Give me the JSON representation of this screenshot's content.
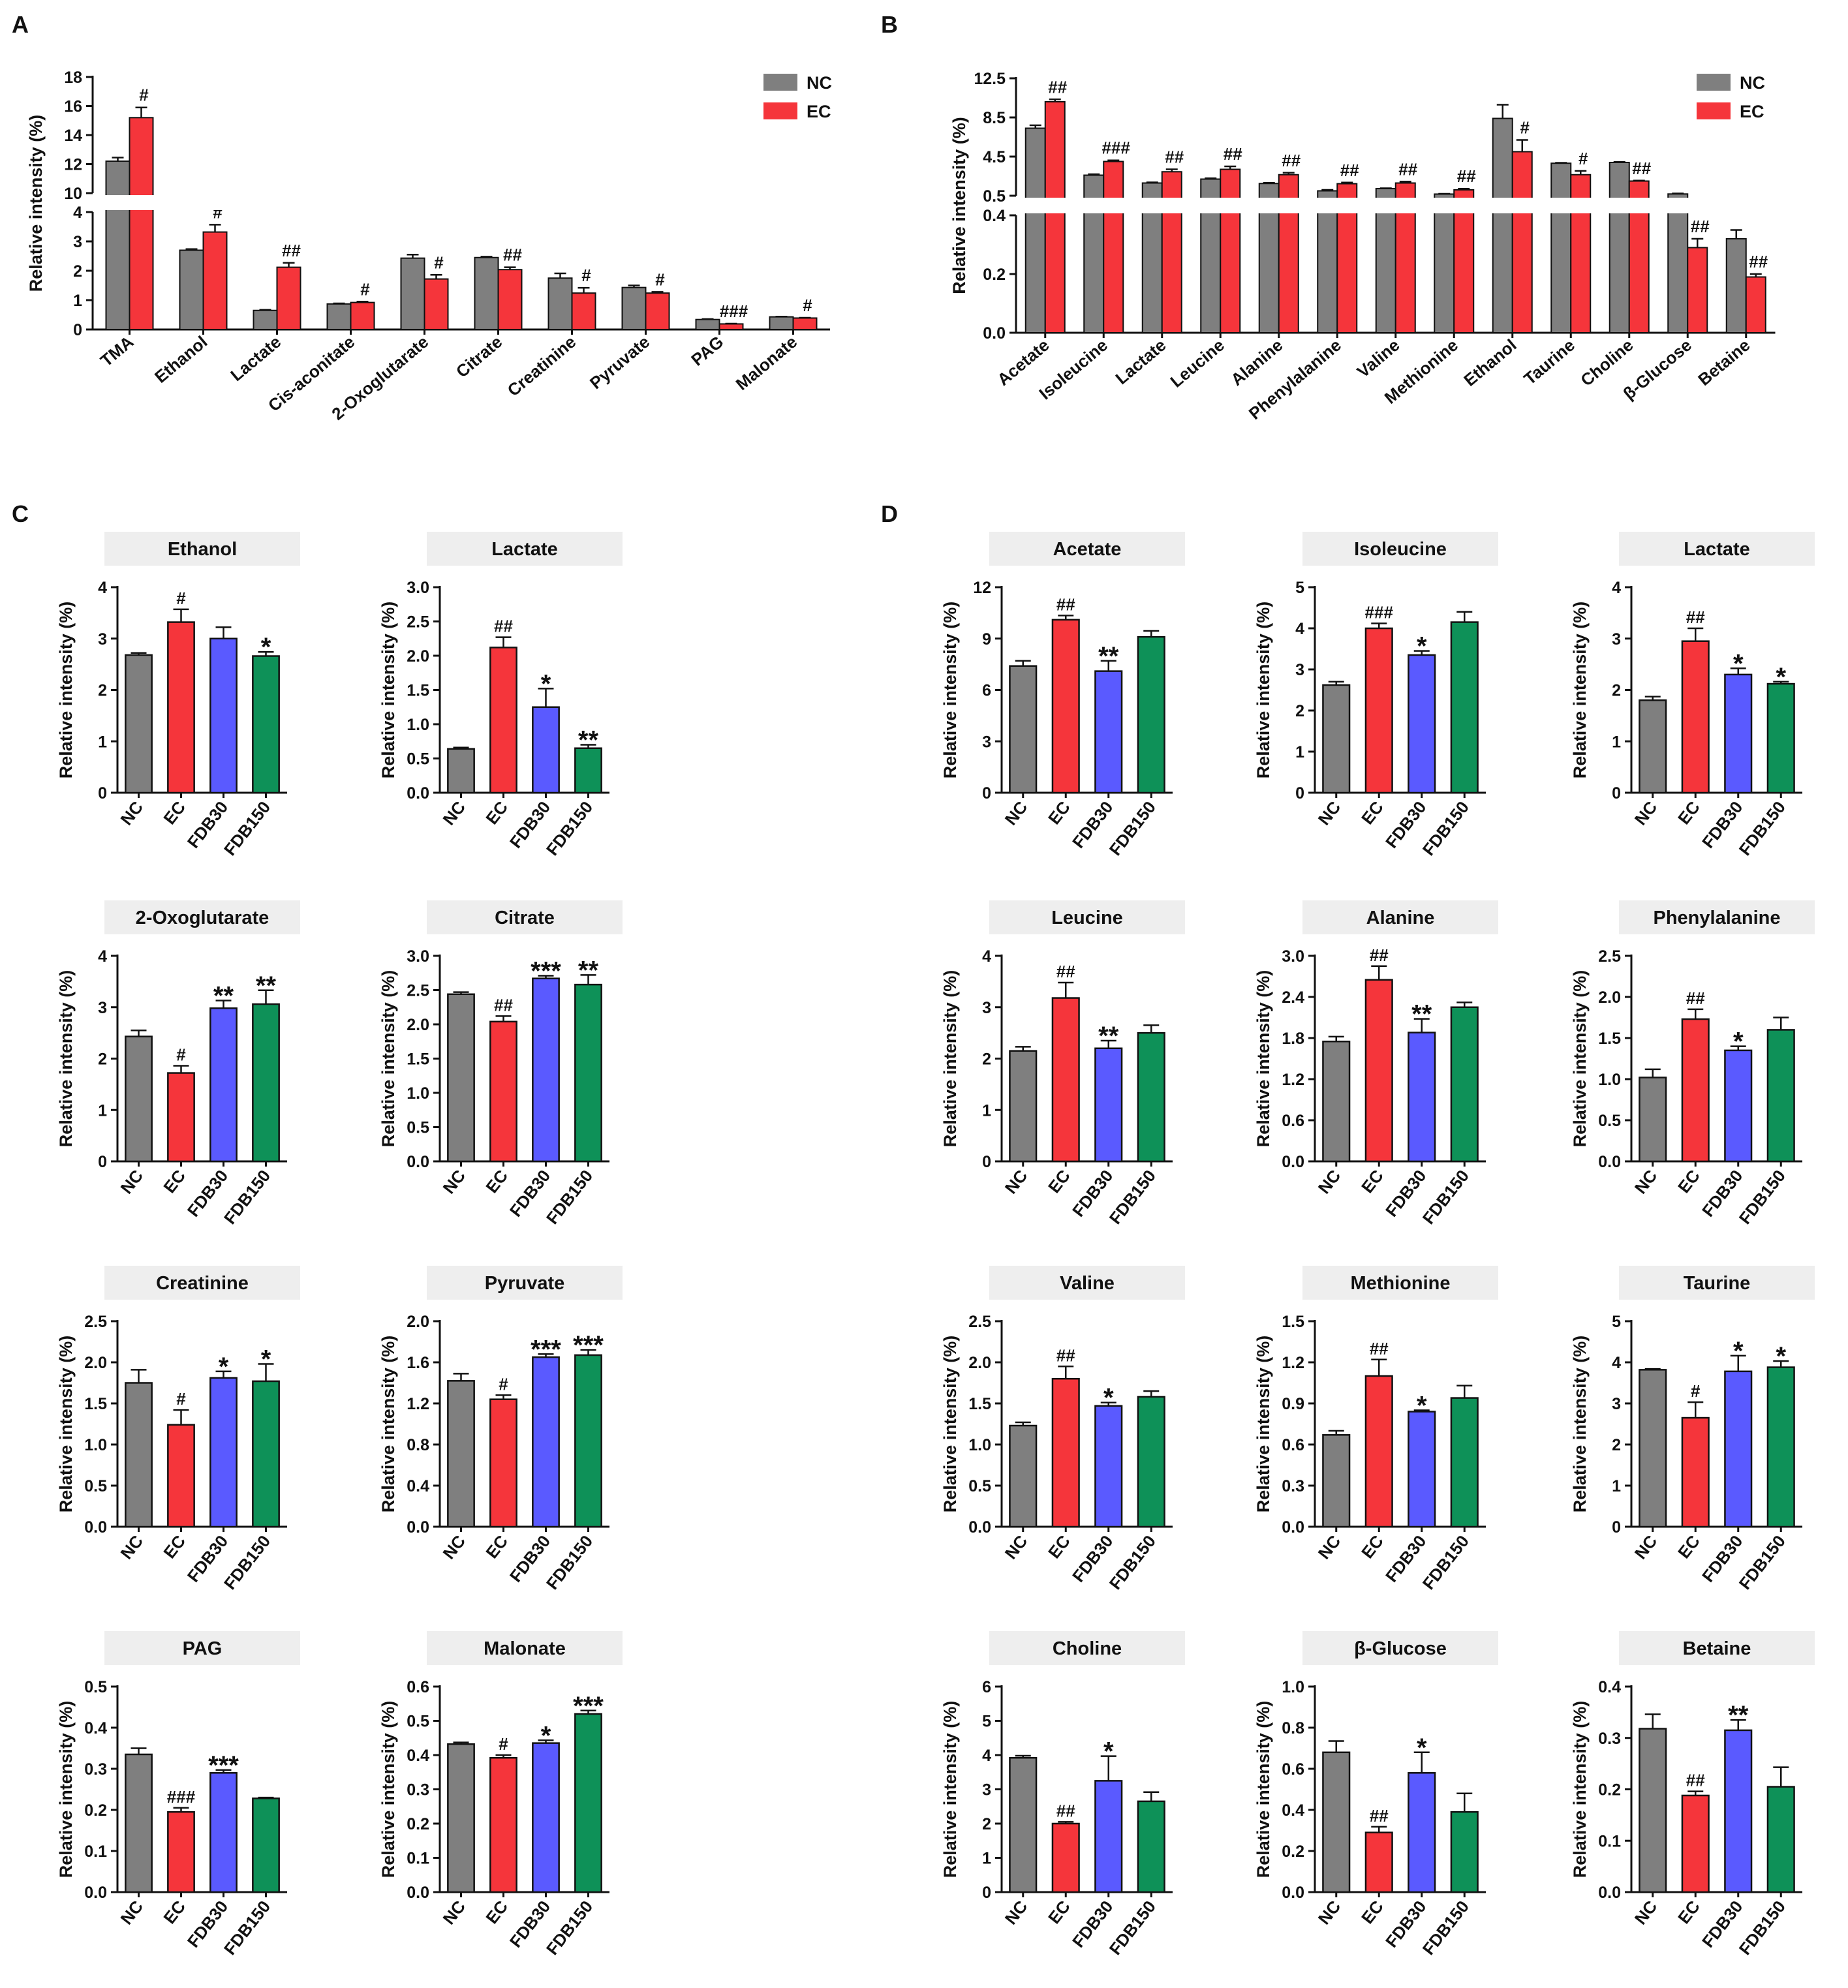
{
  "figure": {
    "group_labels": [
      "NC",
      "EC",
      "FDB30",
      "FDB150"
    ],
    "colors": {
      "NC": "#7f7f7f",
      "EC": "#f5353b",
      "FDB30": "#5a5aff",
      "FDB150": "#0e9158",
      "axis": "#111111",
      "panel_title_bg": "#eeeeee"
    }
  },
  "chart_data": [
    {
      "panel": "A",
      "type": "bar",
      "ylabel": "Relative intensity (%)",
      "legend": [
        "NC",
        "EC"
      ],
      "categories": [
        "TMA",
        "Ethanol",
        "Lactate",
        "Cis-aconitate",
        "2-Oxoglutarate",
        "Citrate",
        "Creatinine",
        "Pyruvate",
        "PAG",
        "Malonate"
      ],
      "series": [
        {
          "name": "NC",
          "values": [
            12.2,
            2.7,
            0.65,
            0.87,
            2.43,
            2.45,
            1.75,
            1.43,
            0.34,
            0.43
          ],
          "errors": [
            0.25,
            0.04,
            0.02,
            0.02,
            0.12,
            0.03,
            0.16,
            0.07,
            0.015,
            0.01
          ]
        },
        {
          "name": "EC",
          "values": [
            15.2,
            3.32,
            2.12,
            0.92,
            1.72,
            2.04,
            1.24,
            1.24,
            0.19,
            0.39
          ],
          "errors": [
            0.7,
            0.25,
            0.15,
            0.03,
            0.14,
            0.08,
            0.18,
            0.04,
            0.01,
            0.01
          ]
        }
      ],
      "marks": [
        "#",
        "#",
        "##",
        "#",
        "#",
        "##",
        "#",
        "#",
        "###",
        "#"
      ],
      "axis_break": {
        "lower": [
          0,
          4
        ],
        "upper": [
          10,
          18
        ]
      },
      "lower_ticks": [
        "0",
        "1",
        "2",
        "3",
        "4"
      ],
      "upper_ticks": [
        "10",
        "12",
        "14",
        "16",
        "18"
      ]
    },
    {
      "panel": "B",
      "type": "bar",
      "ylabel": "Relative intensity (%)",
      "legend": [
        "NC",
        "EC"
      ],
      "categories": [
        "Acetate",
        "Isoleucine",
        "Lactate",
        "Leucine",
        "Alanine",
        "Phenylalanine",
        "Valine",
        "Methionine",
        "Ethanol",
        "Taurine",
        "Choline",
        "β-Glucose",
        "Betaine"
      ],
      "series": [
        {
          "name": "NC",
          "values": [
            7.4,
            2.6,
            1.8,
            2.2,
            1.75,
            1.0,
            1.23,
            0.67,
            8.4,
            3.82,
            3.9,
            0.68,
            0.32
          ],
          "errors": [
            0.3,
            0.1,
            0.07,
            0.08,
            0.07,
            0.1,
            0.04,
            0.03,
            1.4,
            0.05,
            0.05,
            0.05,
            0.03
          ]
        },
        {
          "name": "EC",
          "values": [
            10.1,
            4.0,
            2.95,
            3.2,
            2.65,
            1.73,
            1.8,
            1.1,
            5.0,
            2.65,
            2.0,
            0.29,
            0.19
          ],
          "errors": [
            0.25,
            0.12,
            0.25,
            0.3,
            0.2,
            0.12,
            0.15,
            0.12,
            1.2,
            0.38,
            0.05,
            0.03,
            0.01
          ]
        }
      ],
      "marks": [
        "##",
        "###",
        "##",
        "##",
        "##",
        "##",
        "##",
        "##",
        "#",
        "#",
        "##",
        "##",
        "##"
      ],
      "axis_break": {
        "lower": [
          0,
          0.4
        ],
        "upper": [
          0.5,
          12.5
        ]
      },
      "lower_ticks": [
        "0.0",
        "0.2",
        "0.4"
      ],
      "upper_ticks": [
        "0.5",
        "4.5",
        "8.5",
        "12.5"
      ]
    },
    {
      "panel": "C",
      "type": "bar",
      "title": "Ethanol",
      "ylabel": "Relative intensity (%)",
      "categories": [
        "NC",
        "EC",
        "FDB30",
        "FDB150"
      ],
      "values": [
        2.68,
        3.32,
        3.0,
        2.66
      ],
      "errors": [
        0.04,
        0.25,
        0.22,
        0.08
      ],
      "annotations": [
        "",
        "#",
        "",
        "*"
      ],
      "ylim": [
        0,
        4
      ],
      "ticks": [
        "0",
        "1",
        "2",
        "3",
        "4"
      ]
    },
    {
      "panel": "C",
      "type": "bar",
      "title": "Lactate",
      "ylabel": "Relative intensity (%)",
      "categories": [
        "NC",
        "EC",
        "FDB30",
        "FDB150"
      ],
      "values": [
        0.64,
        2.12,
        1.25,
        0.65
      ],
      "errors": [
        0.02,
        0.15,
        0.27,
        0.05
      ],
      "annotations": [
        "",
        "##",
        "*",
        "**"
      ],
      "ylim": [
        0,
        3.0
      ],
      "ticks": [
        "0.0",
        "0.5",
        "1.0",
        "1.5",
        "2.0",
        "2.5",
        "3.0"
      ]
    },
    {
      "panel": "C",
      "type": "bar",
      "title": "2-Oxoglutarate",
      "ylabel": "Relative intensity (%)",
      "categories": [
        "NC",
        "EC",
        "FDB30",
        "FDB150"
      ],
      "values": [
        2.43,
        1.72,
        2.98,
        3.06
      ],
      "errors": [
        0.12,
        0.14,
        0.15,
        0.27
      ],
      "annotations": [
        "",
        "#",
        "**",
        "**"
      ],
      "ylim": [
        0,
        4
      ],
      "ticks": [
        "0",
        "1",
        "2",
        "3",
        "4"
      ]
    },
    {
      "panel": "C",
      "type": "bar",
      "title": "Citrate",
      "ylabel": "Relative intensity (%)",
      "categories": [
        "NC",
        "EC",
        "FDB30",
        "FDB150"
      ],
      "values": [
        2.44,
        2.04,
        2.67,
        2.58
      ],
      "errors": [
        0.03,
        0.08,
        0.04,
        0.14
      ],
      "annotations": [
        "",
        "##",
        "***",
        "**"
      ],
      "ylim": [
        0,
        3.0
      ],
      "ticks": [
        "0.0",
        "0.5",
        "1.0",
        "1.5",
        "2.0",
        "2.5",
        "3.0"
      ]
    },
    {
      "panel": "C",
      "type": "bar",
      "title": "Creatinine",
      "ylabel": "Relative intensity (%)",
      "categories": [
        "NC",
        "EC",
        "FDB30",
        "FDB150"
      ],
      "values": [
        1.75,
        1.24,
        1.81,
        1.77
      ],
      "errors": [
        0.16,
        0.18,
        0.08,
        0.21
      ],
      "annotations": [
        "",
        "#",
        "*",
        "*"
      ],
      "ylim": [
        0,
        2.5
      ],
      "ticks": [
        "0.0",
        "0.5",
        "1.0",
        "1.5",
        "2.0",
        "2.5"
      ]
    },
    {
      "panel": "C",
      "type": "bar",
      "title": "Pyruvate",
      "ylabel": "Relative intensity (%)",
      "categories": [
        "NC",
        "EC",
        "FDB30",
        "FDB150"
      ],
      "values": [
        1.42,
        1.24,
        1.65,
        1.67
      ],
      "errors": [
        0.07,
        0.04,
        0.03,
        0.05
      ],
      "annotations": [
        "",
        "#",
        "***",
        "***"
      ],
      "ylim": [
        0,
        2.0
      ],
      "ticks": [
        "0.0",
        "0.4",
        "0.8",
        "1.2",
        "1.6",
        "2.0"
      ]
    },
    {
      "panel": "C",
      "type": "bar",
      "title": "PAG",
      "ylabel": "Relative intensity (%)",
      "categories": [
        "NC",
        "EC",
        "FDB30",
        "FDB150"
      ],
      "values": [
        0.335,
        0.195,
        0.29,
        0.228
      ],
      "errors": [
        0.015,
        0.01,
        0.007,
        0.002
      ],
      "annotations": [
        "",
        "###",
        "***",
        ""
      ],
      "ylim": [
        0,
        0.5
      ],
      "ticks": [
        "0.0",
        "0.1",
        "0.2",
        "0.3",
        "0.4",
        "0.5"
      ]
    },
    {
      "panel": "C",
      "type": "bar",
      "title": "Malonate",
      "ylabel": "Relative intensity (%)",
      "categories": [
        "NC",
        "EC",
        "FDB30",
        "FDB150"
      ],
      "values": [
        0.432,
        0.392,
        0.435,
        0.52
      ],
      "errors": [
        0.005,
        0.008,
        0.008,
        0.01
      ],
      "annotations": [
        "",
        "#",
        "*",
        "***"
      ],
      "ylim": [
        0,
        0.6
      ],
      "ticks": [
        "0.0",
        "0.1",
        "0.2",
        "0.3",
        "0.4",
        "0.5",
        "0.6"
      ]
    },
    {
      "panel": "D",
      "type": "bar",
      "title": "Acetate",
      "ylabel": "Relative intensity (%)",
      "categories": [
        "NC",
        "EC",
        "FDB30",
        "FDB150"
      ],
      "values": [
        7.4,
        10.1,
        7.1,
        9.1
      ],
      "errors": [
        0.3,
        0.25,
        0.6,
        0.35
      ],
      "annotations": [
        "",
        "##",
        "**",
        ""
      ],
      "ylim": [
        0,
        12
      ],
      "ticks": [
        "0",
        "3",
        "6",
        "9",
        "12"
      ]
    },
    {
      "panel": "D",
      "type": "bar",
      "title": "Isoleucine",
      "ylabel": "Relative intensity (%)",
      "categories": [
        "NC",
        "EC",
        "FDB30",
        "FDB150"
      ],
      "values": [
        2.62,
        4.0,
        3.35,
        4.15
      ],
      "errors": [
        0.08,
        0.12,
        0.1,
        0.25
      ],
      "annotations": [
        "",
        "###",
        "*",
        ""
      ],
      "ylim": [
        0,
        5
      ],
      "ticks": [
        "0",
        "1",
        "2",
        "3",
        "4",
        "5"
      ]
    },
    {
      "panel": "D",
      "type": "bar",
      "title": "Lactate",
      "ylabel": "Relative intensity (%)",
      "categories": [
        "NC",
        "EC",
        "FDB30",
        "FDB150"
      ],
      "values": [
        1.8,
        2.95,
        2.3,
        2.12
      ],
      "errors": [
        0.07,
        0.25,
        0.12,
        0.04
      ],
      "annotations": [
        "",
        "##",
        "*",
        "*"
      ],
      "ylim": [
        0,
        4
      ],
      "ticks": [
        "0",
        "1",
        "2",
        "3",
        "4"
      ]
    },
    {
      "panel": "D",
      "type": "bar",
      "title": "Leucine",
      "ylabel": "Relative intensity (%)",
      "categories": [
        "NC",
        "EC",
        "FDB30",
        "FDB150"
      ],
      "values": [
        2.15,
        3.18,
        2.2,
        2.5
      ],
      "errors": [
        0.08,
        0.3,
        0.15,
        0.15
      ],
      "annotations": [
        "",
        "##",
        "**",
        ""
      ],
      "ylim": [
        0,
        4
      ],
      "ticks": [
        "0",
        "1",
        "2",
        "3",
        "4"
      ]
    },
    {
      "panel": "D",
      "type": "bar",
      "title": "Alanine",
      "ylabel": "Relative intensity (%)",
      "categories": [
        "NC",
        "EC",
        "FDB30",
        "FDB150"
      ],
      "values": [
        1.75,
        2.65,
        1.88,
        2.25
      ],
      "errors": [
        0.07,
        0.2,
        0.2,
        0.07
      ],
      "annotations": [
        "",
        "##",
        "**",
        ""
      ],
      "ylim": [
        0,
        3.0
      ],
      "ticks": [
        "0.0",
        "0.6",
        "1.2",
        "1.8",
        "2.4",
        "3.0"
      ]
    },
    {
      "panel": "D",
      "type": "bar",
      "title": "Phenylalanine",
      "ylabel": "Relative intensity (%)",
      "categories": [
        "NC",
        "EC",
        "FDB30",
        "FDB150"
      ],
      "values": [
        1.02,
        1.73,
        1.35,
        1.6
      ],
      "errors": [
        0.1,
        0.12,
        0.05,
        0.15
      ],
      "annotations": [
        "",
        "##",
        "*",
        ""
      ],
      "ylim": [
        0,
        2.5
      ],
      "ticks": [
        "0.0",
        "0.5",
        "1.0",
        "1.5",
        "2.0",
        "2.5"
      ]
    },
    {
      "panel": "D",
      "type": "bar",
      "title": "Valine",
      "ylabel": "Relative intensity (%)",
      "categories": [
        "NC",
        "EC",
        "FDB30",
        "FDB150"
      ],
      "values": [
        1.23,
        1.8,
        1.47,
        1.58
      ],
      "errors": [
        0.04,
        0.15,
        0.04,
        0.07
      ],
      "annotations": [
        "",
        "##",
        "*",
        ""
      ],
      "ylim": [
        0,
        2.5
      ],
      "ticks": [
        "0.0",
        "0.5",
        "1.0",
        "1.5",
        "2.0",
        "2.5"
      ]
    },
    {
      "panel": "D",
      "type": "bar",
      "title": "Methionine",
      "ylabel": "Relative intensity (%)",
      "categories": [
        "NC",
        "EC",
        "FDB30",
        "FDB150"
      ],
      "values": [
        0.67,
        1.1,
        0.84,
        0.94
      ],
      "errors": [
        0.03,
        0.12,
        0.01,
        0.09
      ],
      "annotations": [
        "",
        "##",
        "*",
        ""
      ],
      "ylim": [
        0,
        1.5
      ],
      "ticks": [
        "0.0",
        "0.3",
        "0.6",
        "0.9",
        "1.2",
        "1.5"
      ]
    },
    {
      "panel": "D",
      "type": "bar",
      "title": "Taurine",
      "ylabel": "Relative intensity (%)",
      "categories": [
        "NC",
        "EC",
        "FDB30",
        "FDB150"
      ],
      "values": [
        3.82,
        2.65,
        3.78,
        3.88
      ],
      "errors": [
        0.02,
        0.38,
        0.38,
        0.15
      ],
      "annotations": [
        "",
        "#",
        "*",
        "*"
      ],
      "ylim": [
        0,
        5
      ],
      "ticks": [
        "0",
        "1",
        "2",
        "3",
        "4",
        "5"
      ]
    },
    {
      "panel": "D",
      "type": "bar",
      "title": "Choline",
      "ylabel": "Relative intensity (%)",
      "categories": [
        "NC",
        "EC",
        "FDB30",
        "FDB150"
      ],
      "values": [
        3.92,
        2.0,
        3.25,
        2.65
      ],
      "errors": [
        0.06,
        0.05,
        0.72,
        0.27
      ],
      "annotations": [
        "",
        "##",
        "*",
        ""
      ],
      "ylim": [
        0,
        6
      ],
      "ticks": [
        "0",
        "1",
        "2",
        "3",
        "4",
        "5",
        "6"
      ]
    },
    {
      "panel": "D",
      "type": "bar",
      "title": "β-Glucose",
      "ylabel": "Relative intensity (%)",
      "categories": [
        "NC",
        "EC",
        "FDB30",
        "FDB150"
      ],
      "values": [
        0.68,
        0.29,
        0.58,
        0.39
      ],
      "errors": [
        0.055,
        0.028,
        0.1,
        0.09
      ],
      "annotations": [
        "",
        "##",
        "*",
        ""
      ],
      "ylim": [
        0,
        1.0
      ],
      "ticks": [
        "0.0",
        "0.2",
        "0.4",
        "0.6",
        "0.8",
        "1.0"
      ]
    },
    {
      "panel": "D",
      "type": "bar",
      "title": "Betaine",
      "ylabel": "Relative intensity (%)",
      "categories": [
        "NC",
        "EC",
        "FDB30",
        "FDB150"
      ],
      "values": [
        0.318,
        0.188,
        0.315,
        0.205
      ],
      "errors": [
        0.028,
        0.008,
        0.02,
        0.038
      ],
      "annotations": [
        "",
        "##",
        "**",
        ""
      ],
      "ylim": [
        0,
        0.4
      ],
      "ticks": [
        "0.0",
        "0.1",
        "0.2",
        "0.3",
        "0.4"
      ]
    }
  ]
}
